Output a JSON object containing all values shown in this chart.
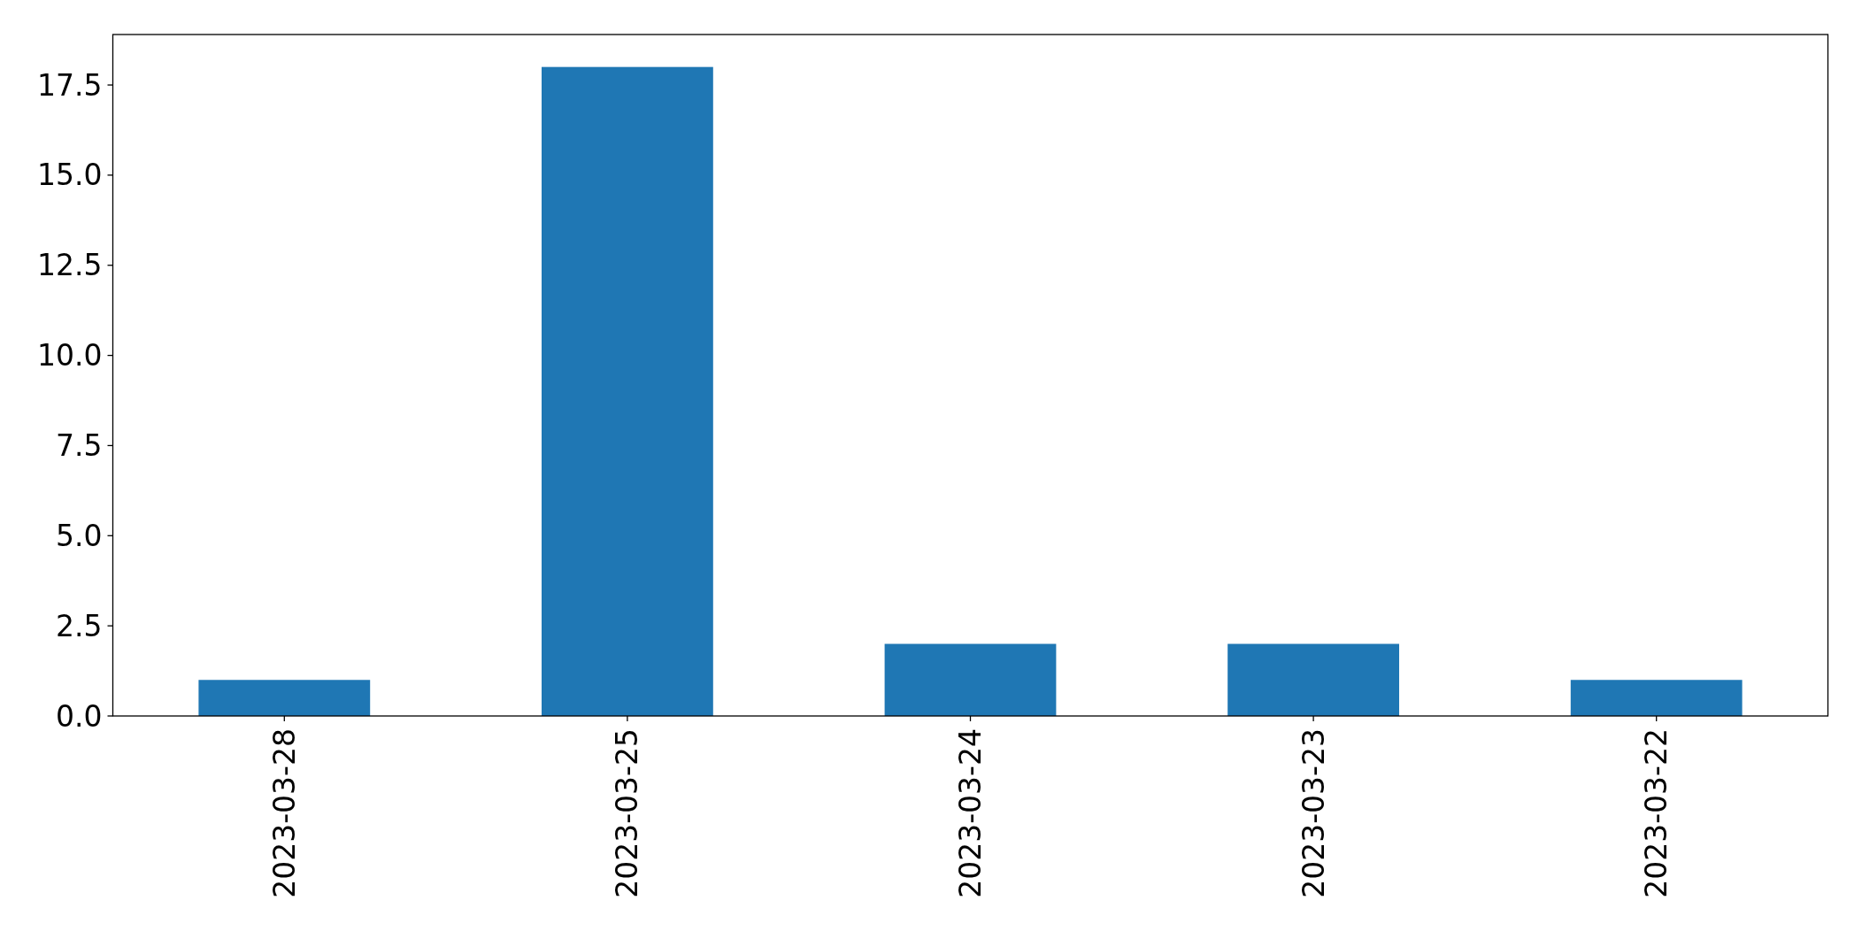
{
  "chart_data": {
    "type": "bar",
    "categories": [
      "2023-03-28",
      "2023-03-25",
      "2023-03-24",
      "2023-03-23",
      "2023-03-22"
    ],
    "values": [
      1,
      18,
      2,
      2,
      1
    ],
    "color": "#1f77b4",
    "ylim": [
      0,
      18.9
    ],
    "yticks": [
      {
        "value": 0,
        "label": "0.0"
      },
      2.5,
      {
        "value": 5,
        "label": "5.0"
      },
      7.5,
      {
        "value": 10,
        "label": "10.0"
      },
      12.5,
      {
        "value": 15,
        "label": "15.0"
      },
      17.5
    ]
  }
}
